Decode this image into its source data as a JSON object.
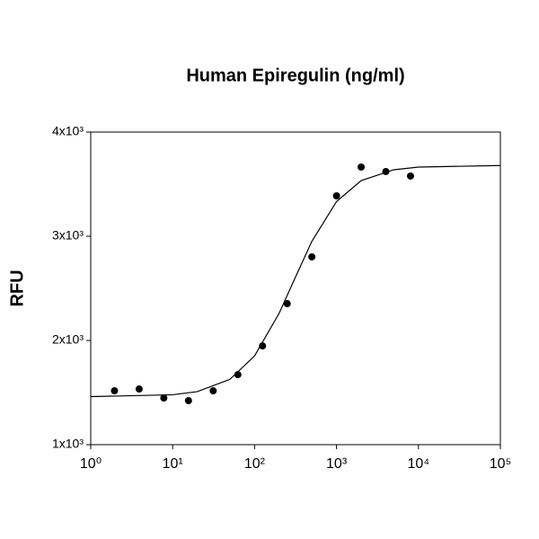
{
  "chart_data": {
    "type": "scatter",
    "title": "Human Epiregulin (ng/ml)",
    "y_label": "RFU",
    "x_log": true,
    "xlim": [
      1,
      100000
    ],
    "xticks": [
      {
        "value": 1,
        "label": "10⁰"
      },
      {
        "value": 10,
        "label": "10¹"
      },
      {
        "value": 100,
        "label": "10²"
      },
      {
        "value": 1000,
        "label": "10³"
      },
      {
        "value": 10000,
        "label": "10⁴"
      },
      {
        "value": 100000,
        "label": "10⁵"
      }
    ],
    "ylim": [
      1000,
      4000
    ],
    "yticks": [
      {
        "value": 1000,
        "label": "1x10³"
      },
      {
        "value": 2000,
        "label": "2x10³"
      },
      {
        "value": 3000,
        "label": "3x10³"
      },
      {
        "value": 4000,
        "label": "4x10³"
      }
    ],
    "series": [
      {
        "color": "#000000",
        "mode": "markers",
        "x": [
          1.95,
          3.9,
          7.8,
          15.6,
          31.25,
          62.5,
          125,
          250,
          500,
          1000,
          2000,
          4000,
          8000
        ],
        "values": [
          1517,
          1534,
          1448,
          1422,
          1517,
          1672,
          1948,
          2353,
          2802,
          3388,
          3664,
          3621,
          3578
        ]
      },
      {
        "color": "#000000",
        "mode": "line",
        "x": [
          1,
          10,
          20,
          50,
          100,
          200,
          300,
          500,
          1000,
          2000,
          5000,
          10000,
          100000
        ],
        "values": [
          1461,
          1479,
          1509,
          1627,
          1852,
          2263,
          2570,
          2951,
          3333,
          3534,
          3638,
          3664,
          3679
        ]
      }
    ]
  }
}
